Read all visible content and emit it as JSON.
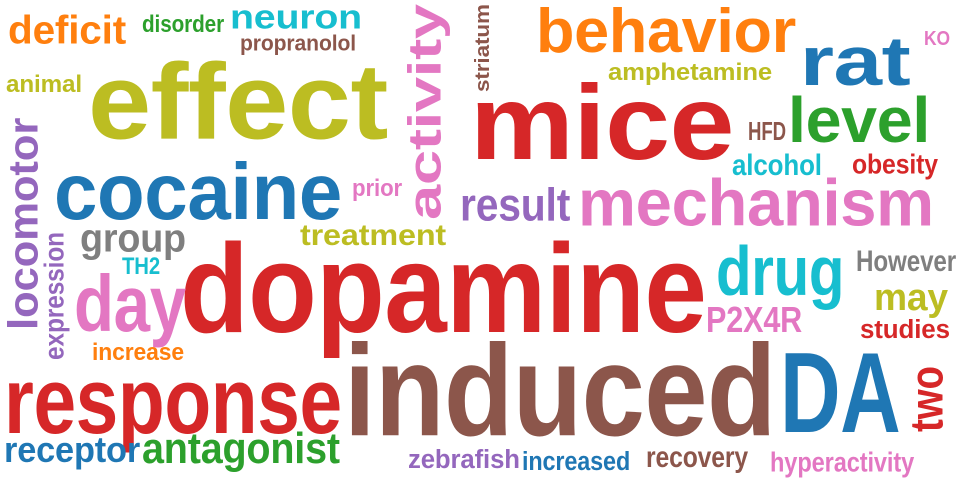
{
  "words": [
    {
      "key": "deficit",
      "text": "deficit",
      "color": "orange"
    },
    {
      "key": "disorder",
      "text": "disorder",
      "color": "green"
    },
    {
      "key": "neuron",
      "text": "neuron",
      "color": "cyan"
    },
    {
      "key": "propranolol",
      "text": "propranolol",
      "color": "brown"
    },
    {
      "key": "activity",
      "text": "activity",
      "color": "pink"
    },
    {
      "key": "striatum",
      "text": "striatum",
      "color": "brown"
    },
    {
      "key": "behavior",
      "text": "behavior",
      "color": "orange"
    },
    {
      "key": "rat",
      "text": "rat",
      "color": "blue"
    },
    {
      "key": "ko",
      "text": "KO",
      "color": "pink"
    },
    {
      "key": "animal",
      "text": "animal",
      "color": "olive"
    },
    {
      "key": "effect",
      "text": "effect",
      "color": "olive"
    },
    {
      "key": "amphetamine",
      "text": "amphetamine",
      "color": "olive"
    },
    {
      "key": "mice",
      "text": "mice",
      "color": "red"
    },
    {
      "key": "hfd",
      "text": "HFD",
      "color": "brown"
    },
    {
      "key": "level",
      "text": "level",
      "color": "green"
    },
    {
      "key": "locomotor",
      "text": "locomotor",
      "color": "purple"
    },
    {
      "key": "cocaine",
      "text": "cocaine",
      "color": "blue"
    },
    {
      "key": "alcohol",
      "text": "alcohol",
      "color": "cyan"
    },
    {
      "key": "obesity",
      "text": "obesity",
      "color": "red"
    },
    {
      "key": "prior",
      "text": "prior",
      "color": "pink"
    },
    {
      "key": "result",
      "text": "result",
      "color": "purple"
    },
    {
      "key": "mechanism",
      "text": "mechanism",
      "color": "pink"
    },
    {
      "key": "group",
      "text": "group",
      "color": "gray"
    },
    {
      "key": "treatment",
      "text": "treatment",
      "color": "olive"
    },
    {
      "key": "expression",
      "text": "expression",
      "color": "purple"
    },
    {
      "key": "th2",
      "text": "TH2",
      "color": "cyan"
    },
    {
      "key": "dopamine",
      "text": "dopamine",
      "color": "red"
    },
    {
      "key": "drug",
      "text": "drug",
      "color": "cyan"
    },
    {
      "key": "however",
      "text": "However",
      "color": "gray"
    },
    {
      "key": "day",
      "text": "day",
      "color": "pink"
    },
    {
      "key": "may",
      "text": "may",
      "color": "olive"
    },
    {
      "key": "p2x4r",
      "text": "P2X4R",
      "color": "pink"
    },
    {
      "key": "studies",
      "text": "studies",
      "color": "red"
    },
    {
      "key": "increase",
      "text": "increase",
      "color": "orange"
    },
    {
      "key": "response",
      "text": "response",
      "color": "red"
    },
    {
      "key": "induced",
      "text": "induced",
      "color": "brown"
    },
    {
      "key": "da",
      "text": "DA",
      "color": "blue"
    },
    {
      "key": "two",
      "text": "two",
      "color": "red"
    },
    {
      "key": "receptor",
      "text": "receptor",
      "color": "blue"
    },
    {
      "key": "antagonist",
      "text": "antagonist",
      "color": "green"
    },
    {
      "key": "zebrafish",
      "text": "zebrafish",
      "color": "purple"
    },
    {
      "key": "increased",
      "text": "increased",
      "color": "blue"
    },
    {
      "key": "recovery",
      "text": "recovery",
      "color": "brown"
    },
    {
      "key": "hyperactivity",
      "text": "hyperactivity",
      "color": "pink"
    }
  ]
}
